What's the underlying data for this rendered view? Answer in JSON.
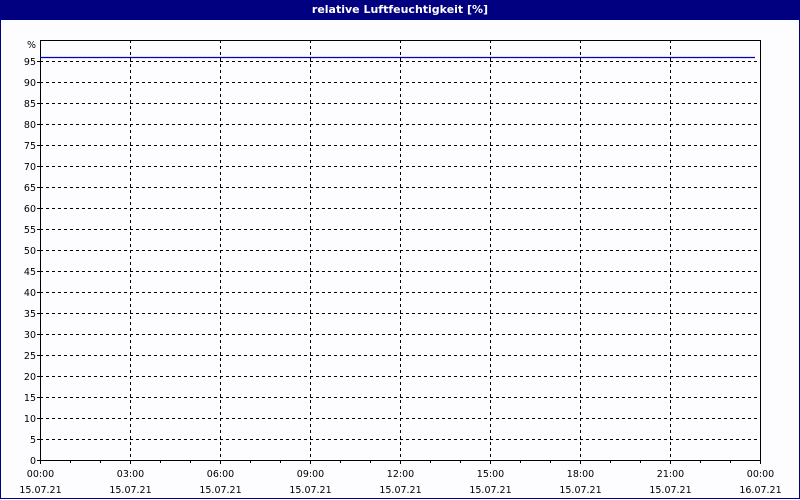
{
  "window": {
    "title": "relative Luftfeuchtigkeit [%]"
  },
  "chart_data": {
    "type": "line",
    "title": "relative Luftfeuchtigkeit [%]",
    "ylabel": "%",
    "ylim": [
      0,
      100
    ],
    "yticks": [
      0,
      5,
      10,
      15,
      20,
      25,
      30,
      35,
      40,
      45,
      50,
      55,
      60,
      65,
      70,
      75,
      80,
      85,
      90,
      95
    ],
    "xlim": [
      "15.07.21 00:00",
      "16.07.21 00:00"
    ],
    "xticks": [
      {
        "time": "00:00",
        "date": "15.07.21"
      },
      {
        "time": "03:00",
        "date": "15.07.21"
      },
      {
        "time": "06:00",
        "date": "15.07.21"
      },
      {
        "time": "09:00",
        "date": "15.07.21"
      },
      {
        "time": "12:00",
        "date": "15.07.21"
      },
      {
        "time": "15:00",
        "date": "15.07.21"
      },
      {
        "time": "18:00",
        "date": "15.07.21"
      },
      {
        "time": "21:00",
        "date": "15.07.21"
      },
      {
        "time": "00:00",
        "date": "16.07.21"
      }
    ],
    "grid": true,
    "series": [
      {
        "color": "#0000c0",
        "x": [
          "15.07.21 00:00",
          "15.07.21 23:50"
        ],
        "y": [
          96,
          96
        ]
      }
    ]
  }
}
